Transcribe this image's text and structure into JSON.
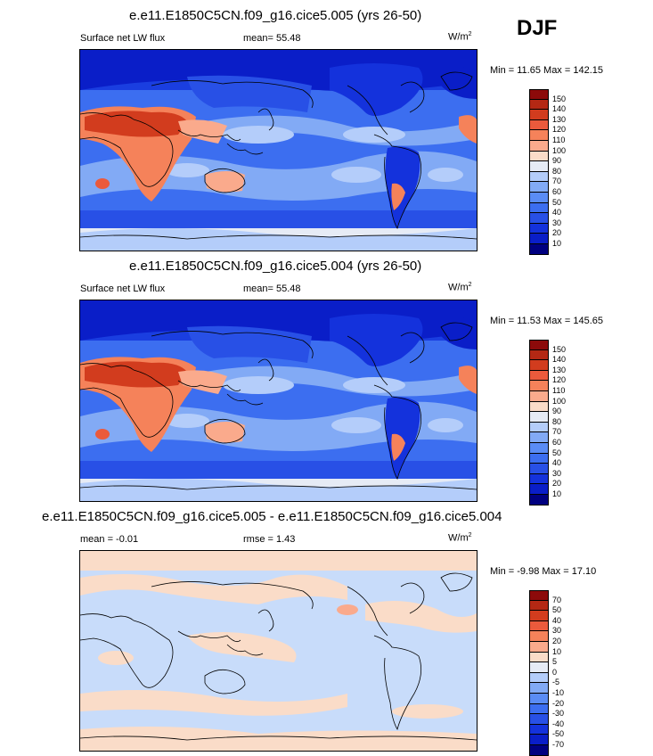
{
  "season": "DJF",
  "panels": [
    {
      "title": "e.e11.E1850C5CN.f09_g16.cice5.005 (yrs 26-50)",
      "left_label": "Surface net LW flux",
      "mid_label": "mean=  55.48",
      "units": "W/m",
      "units_sup": "2",
      "minmax": "Min =  11.65 Max = 142.15",
      "colorbar_levels": [
        "150",
        "140",
        "130",
        "120",
        "110",
        "100",
        "90",
        "80",
        "70",
        "60",
        "50",
        "40",
        "30",
        "20",
        "10"
      ]
    },
    {
      "title": "e.e11.E1850C5CN.f09_g16.cice5.004 (yrs 26-50)",
      "left_label": "Surface net LW flux",
      "mid_label": "mean=  55.48",
      "units": "W/m",
      "units_sup": "2",
      "minmax": "Min =  11.53 Max = 145.65",
      "colorbar_levels": [
        "150",
        "140",
        "130",
        "120",
        "110",
        "100",
        "90",
        "80",
        "70",
        "60",
        "50",
        "40",
        "30",
        "20",
        "10"
      ]
    },
    {
      "title": "e.e11.E1850C5CN.f09_g16.cice5.005 - e.e11.E1850C5CN.f09_g16.cice5.004",
      "left_label": "mean =  -0.01",
      "mid_label": "rmse =   1.43",
      "units": "W/m",
      "units_sup": "2",
      "minmax": "Min =  -9.98 Max =  17.10",
      "colorbar_levels": [
        "70",
        "50",
        "40",
        "30",
        "20",
        "10",
        "5",
        "0",
        "-5",
        "-10",
        "-20",
        "-30",
        "-40",
        "-50",
        "-70"
      ]
    }
  ],
  "colors": {
    "scale": [
      "#000080",
      "#0a1ec8",
      "#1432dc",
      "#2850e6",
      "#3c6ef0",
      "#5a8cf5",
      "#82aaf5",
      "#b4cdfa",
      "#e6ebf5",
      "#fadcc8",
      "#faaa8c",
      "#f5825a",
      "#eb5a3c",
      "#d23c1e",
      "#b42814",
      "#8c0a0a"
    ],
    "ocean_mid": "#3c6ef0",
    "ocean_light": "#b4cdfa",
    "diff_bg": "#c8dcfa",
    "diff_pos": "#fadcc8"
  }
}
